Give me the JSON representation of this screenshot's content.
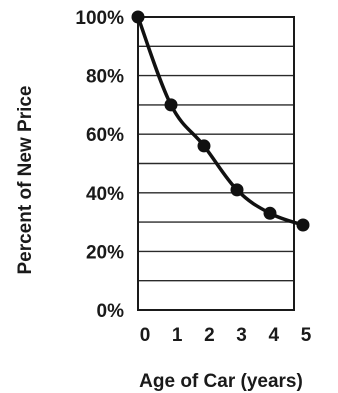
{
  "chart_data": {
    "type": "line",
    "title": "",
    "xlabel": "Age of Car (years)",
    "ylabel": "Percent of New Price",
    "x": [
      0,
      1,
      2,
      3,
      4,
      5
    ],
    "x_tick_labels": [
      "0",
      "1",
      "2",
      "3",
      "4",
      "5"
    ],
    "y_tick_labels": [
      "100%",
      "80%",
      "60%",
      "40%",
      "20%",
      "0%"
    ],
    "y_ticks": [
      100,
      80,
      60,
      40,
      20,
      0
    ],
    "xlim": [
      0,
      5
    ],
    "ylim": [
      0,
      100
    ],
    "grid": "horizontal",
    "series": [
      {
        "values": [
          100,
          70,
          56,
          41,
          33,
          29
        ]
      }
    ],
    "colors": {
      "line": "#111111",
      "grid": "#2a2a2a",
      "text": "#1a1a1a"
    }
  }
}
